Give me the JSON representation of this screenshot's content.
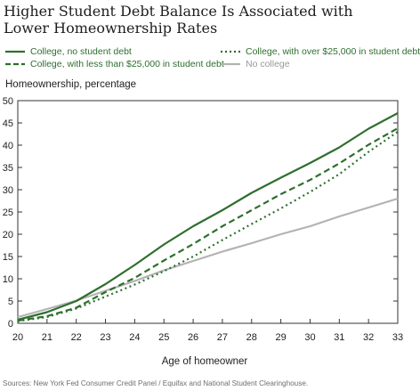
{
  "chart_data": {
    "type": "line",
    "title": "Higher Student Debt Balance Is Associated with Lower Homeownership Rates",
    "xlabel": "Age of homeowner",
    "ylabel": "Homeownership, percentage",
    "source": "Sources: New York Fed Consumer Credit Panel / Equifax and National Student Clearinghouse.",
    "x": [
      20,
      21,
      22,
      23,
      24,
      25,
      26,
      27,
      28,
      29,
      30,
      31,
      32,
      33
    ],
    "xlim": [
      20,
      33
    ],
    "ylim": [
      0,
      50
    ],
    "x_ticks": [
      "20",
      "21",
      "22",
      "23",
      "24",
      "25",
      "26",
      "27",
      "28",
      "29",
      "30",
      "31",
      "32",
      "33"
    ],
    "y_ticks": [
      "0",
      "5",
      "10",
      "15",
      "20",
      "25",
      "30",
      "35",
      "40",
      "45",
      "50"
    ],
    "grid": false,
    "legend_position": "top",
    "series": [
      {
        "name": "College, no student debt",
        "color": "#2e6f2e",
        "style": "solid",
        "values": [
          0.8,
          2.5,
          5.0,
          8.8,
          13.1,
          17.7,
          21.8,
          25.4,
          29.3,
          32.7,
          36.0,
          39.5,
          43.7,
          47.2
        ]
      },
      {
        "name": "College, with less than $25,000 in student debt",
        "color": "#2e6f2e",
        "style": "dashed",
        "values": [
          0.6,
          1.6,
          3.5,
          7.0,
          10.2,
          14.1,
          17.8,
          21.8,
          25.4,
          29.0,
          32.2,
          35.9,
          40.1,
          43.8
        ]
      },
      {
        "name": "College, with over $25,000 in student debt",
        "color": "#2e6f2e",
        "style": "dotted",
        "values": [
          0.5,
          1.4,
          3.3,
          6.0,
          8.7,
          11.7,
          15.0,
          18.7,
          22.3,
          25.8,
          29.5,
          33.5,
          38.5,
          43.0
        ]
      },
      {
        "name": "No college",
        "color": "#b3b3b3",
        "style": "solid",
        "values": [
          1.4,
          3.2,
          5.1,
          7.3,
          9.5,
          11.9,
          14.0,
          16.1,
          18.0,
          20.0,
          21.8,
          24.0,
          26.0,
          28.0
        ]
      }
    ]
  }
}
